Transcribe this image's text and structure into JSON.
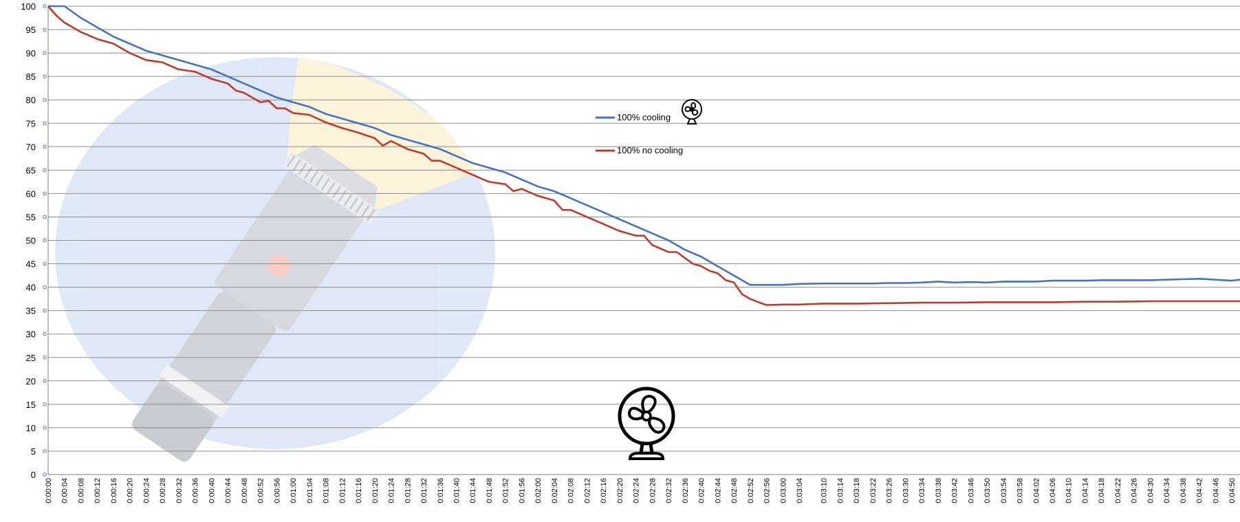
{
  "chart_data": {
    "type": "line",
    "title": "",
    "xlabel": "",
    "ylabel": "",
    "ylim": [
      0,
      100
    ],
    "yticks": [
      "0",
      "5",
      "10",
      "15",
      "20",
      "25",
      "30",
      "35",
      "40",
      "45",
      "50",
      "55",
      "60",
      "65",
      "70",
      "75",
      "80",
      "85",
      "90",
      "95",
      "100"
    ],
    "grid": true,
    "legend_position": "center-top",
    "x_start": "0:00:00",
    "x_end": "0:04:52",
    "x_interval": "0:00:01",
    "x_labels": [
      "0:00:00",
      "0:00:04",
      "0:00:08",
      "0:00:12",
      "0:00:16",
      "0:00:20",
      "0:00:24",
      "0:00:28",
      "0:00:32",
      "0:00:36",
      "0:00:40",
      "0:00:44",
      "0:00:48",
      "0:00:52",
      "0:00:56",
      "0:01:00",
      "0:01:04",
      "0:01:08",
      "0:01:12",
      "0:01:16",
      "0:01:20",
      "0:01:24",
      "0:01:28",
      "0:01:32",
      "0:01:36",
      "0:01:40",
      "0:01:44",
      "0:01:48",
      "0:01:52",
      "0:01:56",
      "0:02:00",
      "0:02:04",
      "0:02:08",
      "0:02:12",
      "0:02:16",
      "0:02:20",
      "0:02:24",
      "0:02:28",
      "0:02:32",
      "0:02:36",
      "0:02:40",
      "0:02:44",
      "0:02:48",
      "0:02:52",
      "0:02:56",
      "0:03:00",
      "0:03:04",
      "0:03:10",
      "0:03:14",
      "0:03:18",
      "0:03:22",
      "0:03:26",
      "0:03:30",
      "0:03:34",
      "0:03:38",
      "0:03:42",
      "0:03:46",
      "0:03:50",
      "0:03:54",
      "0:03:58",
      "0:04:02",
      "0:04:06",
      "0:04:10",
      "0:04:14",
      "0:04:18",
      "0:04:22",
      "0:04:26",
      "0:04:30",
      "0:04:34",
      "0:04:38",
      "0:04:42",
      "0:04:46",
      "0:04:50"
    ],
    "series": [
      {
        "name": "100% cooling",
        "color": "#4472c4",
        "points": [
          [
            "0:00:00",
            100
          ],
          [
            "0:00:04",
            100
          ],
          [
            "0:00:08",
            97.5
          ],
          [
            "0:00:12",
            95.5
          ],
          [
            "0:00:16",
            93.5
          ],
          [
            "0:00:20",
            92
          ],
          [
            "0:00:24",
            90.5
          ],
          [
            "0:00:28",
            89.5
          ],
          [
            "0:00:32",
            88.5
          ],
          [
            "0:00:36",
            87.5
          ],
          [
            "0:00:40",
            86.5
          ],
          [
            "0:00:44",
            85
          ],
          [
            "0:00:48",
            83.5
          ],
          [
            "0:00:52",
            82
          ],
          [
            "0:00:56",
            80.5
          ],
          [
            "0:01:00",
            79.5
          ],
          [
            "0:01:04",
            78.5
          ],
          [
            "0:01:08",
            77
          ],
          [
            "0:01:12",
            76
          ],
          [
            "0:01:16",
            75
          ],
          [
            "0:01:20",
            74
          ],
          [
            "0:01:24",
            72.5
          ],
          [
            "0:01:28",
            71.5
          ],
          [
            "0:01:32",
            70.5
          ],
          [
            "0:01:36",
            69.5
          ],
          [
            "0:01:40",
            68
          ],
          [
            "0:01:44",
            66.5
          ],
          [
            "0:01:48",
            65.5
          ],
          [
            "0:01:52",
            64.5
          ],
          [
            "0:01:56",
            63
          ],
          [
            "0:02:00",
            61.5
          ],
          [
            "0:02:04",
            60.5
          ],
          [
            "0:02:08",
            59
          ],
          [
            "0:02:12",
            57.5
          ],
          [
            "0:02:16",
            56
          ],
          [
            "0:02:20",
            54.5
          ],
          [
            "0:02:24",
            53
          ],
          [
            "0:02:28",
            51.5
          ],
          [
            "0:02:32",
            50
          ],
          [
            "0:02:36",
            48
          ],
          [
            "0:02:40",
            46.5
          ],
          [
            "0:02:44",
            44.5
          ],
          [
            "0:02:48",
            42.5
          ],
          [
            "0:02:52",
            40.5
          ],
          [
            "0:02:56",
            40.5
          ],
          [
            "0:03:00",
            40.5
          ],
          [
            "0:03:04",
            40.7
          ],
          [
            "0:03:10",
            40.8
          ],
          [
            "0:03:14",
            40.8
          ],
          [
            "0:03:18",
            40.8
          ],
          [
            "0:03:22",
            40.8
          ],
          [
            "0:03:26",
            40.9
          ],
          [
            "0:03:30",
            40.9
          ],
          [
            "0:03:34",
            41
          ],
          [
            "0:03:38",
            41.2
          ],
          [
            "0:03:42",
            41
          ],
          [
            "0:03:46",
            41.1
          ],
          [
            "0:03:50",
            41
          ],
          [
            "0:03:54",
            41.2
          ],
          [
            "0:03:58",
            41.2
          ],
          [
            "0:04:02",
            41.2
          ],
          [
            "0:04:06",
            41.4
          ],
          [
            "0:04:10",
            41.4
          ],
          [
            "0:04:14",
            41.4
          ],
          [
            "0:04:18",
            41.5
          ],
          [
            "0:04:22",
            41.5
          ],
          [
            "0:04:26",
            41.5
          ],
          [
            "0:04:30",
            41.5
          ],
          [
            "0:04:34",
            41.6
          ],
          [
            "0:04:38",
            41.7
          ],
          [
            "0:04:42",
            41.8
          ],
          [
            "0:04:46",
            41.6
          ],
          [
            "0:04:50",
            41.4
          ],
          [
            "0:04:52",
            41.6
          ]
        ]
      },
      {
        "name": "100% no cooling",
        "color": "#c0392b",
        "points": [
          [
            "0:00:00",
            100
          ],
          [
            "0:00:02",
            98
          ],
          [
            "0:00:04",
            96.5
          ],
          [
            "0:00:08",
            94.5
          ],
          [
            "0:00:12",
            93
          ],
          [
            "0:00:16",
            92
          ],
          [
            "0:00:20",
            90
          ],
          [
            "0:00:24",
            88.5
          ],
          [
            "0:00:28",
            88
          ],
          [
            "0:00:32",
            86.5
          ],
          [
            "0:00:36",
            86
          ],
          [
            "0:00:40",
            84.5
          ],
          [
            "0:00:44",
            83.5
          ],
          [
            "0:00:46",
            82
          ],
          [
            "0:00:48",
            81.5
          ],
          [
            "0:00:50",
            80.5
          ],
          [
            "0:00:52",
            79.5
          ],
          [
            "0:00:54",
            79.8
          ],
          [
            "0:00:56",
            78.2
          ],
          [
            "0:00:58",
            78.2
          ],
          [
            "0:01:00",
            77.2
          ],
          [
            "0:01:04",
            76.8
          ],
          [
            "0:01:08",
            75.2
          ],
          [
            "0:01:12",
            74
          ],
          [
            "0:01:16",
            73
          ],
          [
            "0:01:20",
            71.8
          ],
          [
            "0:01:22",
            70.2
          ],
          [
            "0:01:24",
            71.2
          ],
          [
            "0:01:28",
            69.5
          ],
          [
            "0:01:32",
            68.5
          ],
          [
            "0:01:34",
            67
          ],
          [
            "0:01:36",
            67
          ],
          [
            "0:01:40",
            65.5
          ],
          [
            "0:01:44",
            64
          ],
          [
            "0:01:48",
            62.5
          ],
          [
            "0:01:52",
            62
          ],
          [
            "0:01:54",
            60.5
          ],
          [
            "0:01:56",
            61
          ],
          [
            "0:02:00",
            59.5
          ],
          [
            "0:02:04",
            58.5
          ],
          [
            "0:02:06",
            56.5
          ],
          [
            "0:02:08",
            56.5
          ],
          [
            "0:02:12",
            55
          ],
          [
            "0:02:16",
            53.5
          ],
          [
            "0:02:20",
            52
          ],
          [
            "0:02:24",
            51
          ],
          [
            "0:02:26",
            51
          ],
          [
            "0:02:28",
            49
          ],
          [
            "0:02:32",
            47.5
          ],
          [
            "0:02:34",
            47.5
          ],
          [
            "0:02:38",
            45
          ],
          [
            "0:02:40",
            44.5
          ],
          [
            "0:02:42",
            43.5
          ],
          [
            "0:02:44",
            43
          ],
          [
            "0:02:46",
            41.5
          ],
          [
            "0:02:48",
            41
          ],
          [
            "0:02:50",
            38.5
          ],
          [
            "0:02:52",
            37.5
          ],
          [
            "0:02:54",
            36.8
          ],
          [
            "0:02:56",
            36.2
          ],
          [
            "0:03:00",
            36.3
          ],
          [
            "0:03:04",
            36.3
          ],
          [
            "0:03:10",
            36.5
          ],
          [
            "0:03:18",
            36.5
          ],
          [
            "0:03:26",
            36.6
          ],
          [
            "0:03:34",
            36.7
          ],
          [
            "0:03:42",
            36.7
          ],
          [
            "0:03:50",
            36.8
          ],
          [
            "0:03:58",
            36.8
          ],
          [
            "0:04:06",
            36.8
          ],
          [
            "0:04:14",
            36.9
          ],
          [
            "0:04:22",
            36.9
          ],
          [
            "0:04:30",
            37
          ],
          [
            "0:04:38",
            37
          ],
          [
            "0:04:46",
            37
          ],
          [
            "0:04:52",
            37
          ]
        ]
      }
    ]
  },
  "decorations": {
    "background_image_icon": "flashlight-icon",
    "legend_icon": "fan-icon",
    "bottom_icon": "fan-icon"
  }
}
